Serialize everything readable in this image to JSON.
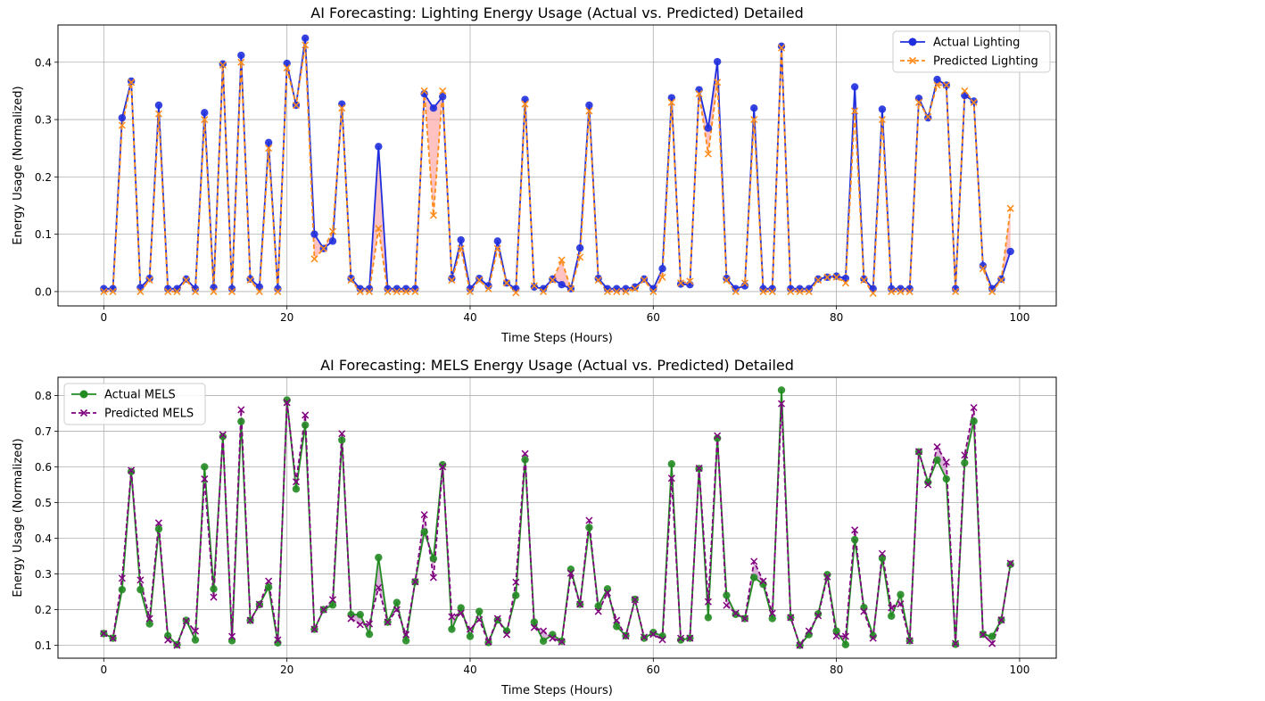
{
  "colors": {
    "actual_lighting": "#1f2fdd",
    "predicted_lighting": "#ff8c1a",
    "lighting_gap": "#ff9999",
    "actual_mels": "#228b22",
    "predicted_mels": "#800080",
    "mels_gap": "#c080c0",
    "grid": "#b0b0b0"
  },
  "chart_data": [
    {
      "type": "line",
      "title": "AI Forecasting: Lighting Energy Usage (Actual vs. Predicted) Detailed",
      "xlabel": "Time Steps (Hours)",
      "ylabel": "Energy Usage (Normalized)",
      "xlim": [
        -5,
        104
      ],
      "ylim": [
        -0.025,
        0.465
      ],
      "xticks": [
        0,
        20,
        40,
        60,
        80,
        100
      ],
      "yticks": [
        0.0,
        0.1,
        0.2,
        0.3,
        0.4
      ],
      "ytick_labels": [
        "0.0",
        "0.1",
        "0.2",
        "0.3",
        "0.4"
      ],
      "grid": true,
      "legend": "top-right",
      "series": [
        {
          "name": "Actual Lighting",
          "values": [
            0.005,
            0.005,
            0.303,
            0.367,
            0.007,
            0.023,
            0.325,
            0.005,
            0.005,
            0.022,
            0.005,
            0.312,
            0.007,
            0.397,
            0.005,
            0.412,
            0.022,
            0.008,
            0.26,
            0.005,
            0.398,
            0.325,
            0.442,
            0.1,
            0.075,
            0.088,
            0.327,
            0.023,
            0.005,
            0.005,
            0.253,
            0.005,
            0.005,
            0.005,
            0.005,
            0.345,
            0.32,
            0.34,
            0.023,
            0.09,
            0.005,
            0.023,
            0.01,
            0.088,
            0.015,
            0.005,
            0.335,
            0.008,
            0.005,
            0.022,
            0.012,
            0.005,
            0.076,
            0.325,
            0.023,
            0.005,
            0.005,
            0.005,
            0.008,
            0.022,
            0.005,
            0.04,
            0.338,
            0.013,
            0.012,
            0.352,
            0.285,
            0.401,
            0.023,
            0.005,
            0.01,
            0.32,
            0.005,
            0.005,
            0.428,
            0.005,
            0.005,
            0.005,
            0.022,
            0.025,
            0.027,
            0.023,
            0.357,
            0.022,
            0.005,
            0.318,
            0.005,
            0.005,
            0.005,
            0.337,
            0.303,
            0.37,
            0.36,
            0.005,
            0.342,
            0.332,
            0.045,
            0.005,
            0.022,
            0.07
          ]
        },
        {
          "name": "Predicted Lighting",
          "values": [
            0.0,
            0.0,
            0.29,
            0.365,
            0.0,
            0.02,
            0.31,
            0.0,
            0.0,
            0.02,
            0.0,
            0.3,
            0.0,
            0.395,
            0.0,
            0.4,
            0.02,
            0.0,
            0.25,
            0.0,
            0.39,
            0.325,
            0.43,
            0.057,
            0.075,
            0.105,
            0.32,
            0.02,
            0.0,
            0.0,
            0.11,
            0.0,
            0.0,
            0.0,
            0.0,
            0.35,
            0.133,
            0.35,
            0.02,
            0.075,
            0.0,
            0.02,
            0.005,
            0.075,
            0.015,
            -0.002,
            0.327,
            0.01,
            0.0,
            0.02,
            0.055,
            0.005,
            0.06,
            0.315,
            0.02,
            0.0,
            0.0,
            0.0,
            0.005,
            0.02,
            0.0,
            0.025,
            0.33,
            0.015,
            0.018,
            0.345,
            0.24,
            0.365,
            0.02,
            0.0,
            0.015,
            0.3,
            0.0,
            0.0,
            0.425,
            0.0,
            0.0,
            0.0,
            0.02,
            0.025,
            0.025,
            0.015,
            0.315,
            0.02,
            -0.003,
            0.3,
            0.0,
            0.0,
            0.0,
            0.33,
            0.305,
            0.36,
            0.36,
            0.0,
            0.35,
            0.33,
            0.04,
            0.0,
            0.02,
            0.145
          ]
        }
      ]
    },
    {
      "type": "line",
      "title": "AI Forecasting: MELS Energy Usage (Actual vs. Predicted) Detailed",
      "xlabel": "Time Steps (Hours)",
      "ylabel": "Energy Usage (Normalized)",
      "xlim": [
        -5,
        104
      ],
      "ylim": [
        0.064,
        0.851
      ],
      "xticks": [
        0,
        20,
        40,
        60,
        80,
        100
      ],
      "yticks": [
        0.1,
        0.2,
        0.3,
        0.4,
        0.5,
        0.6,
        0.7,
        0.8
      ],
      "ytick_labels": [
        "0.1",
        "0.2",
        "0.3",
        "0.4",
        "0.5",
        "0.6",
        "0.7",
        "0.8"
      ],
      "grid": true,
      "legend": "top-left",
      "series": [
        {
          "name": "Actual MELS",
          "values": [
            0.133,
            0.12,
            0.256,
            0.587,
            0.256,
            0.16,
            0.426,
            0.127,
            0.102,
            0.17,
            0.115,
            0.6,
            0.258,
            0.685,
            0.113,
            0.727,
            0.17,
            0.214,
            0.263,
            0.107,
            0.787,
            0.538,
            0.717,
            0.145,
            0.2,
            0.213,
            0.675,
            0.186,
            0.186,
            0.131,
            0.346,
            0.165,
            0.22,
            0.113,
            0.278,
            0.418,
            0.343,
            0.606,
            0.145,
            0.205,
            0.125,
            0.195,
            0.108,
            0.171,
            0.14,
            0.24,
            0.62,
            0.165,
            0.112,
            0.13,
            0.112,
            0.313,
            0.215,
            0.43,
            0.21,
            0.258,
            0.153,
            0.127,
            0.229,
            0.12,
            0.136,
            0.126,
            0.608,
            0.115,
            0.12,
            0.595,
            0.178,
            0.68,
            0.24,
            0.187,
            0.175,
            0.29,
            0.271,
            0.175,
            0.815,
            0.178,
            0.1,
            0.13,
            0.188,
            0.298,
            0.14,
            0.102,
            0.396,
            0.206,
            0.127,
            0.344,
            0.182,
            0.242,
            0.113,
            0.642,
            0.557,
            0.619,
            0.566,
            0.103,
            0.611,
            0.728,
            0.131,
            0.125,
            0.171,
            0.327
          ]
        },
        {
          "name": "Predicted MELS",
          "values": [
            0.133,
            0.12,
            0.288,
            0.59,
            0.283,
            0.175,
            0.443,
            0.115,
            0.1,
            0.168,
            0.14,
            0.566,
            0.235,
            0.69,
            0.125,
            0.76,
            0.17,
            0.215,
            0.28,
            0.115,
            0.78,
            0.558,
            0.745,
            0.145,
            0.2,
            0.228,
            0.693,
            0.175,
            0.158,
            0.16,
            0.262,
            0.165,
            0.2,
            0.13,
            0.278,
            0.466,
            0.29,
            0.6,
            0.18,
            0.19,
            0.145,
            0.172,
            0.11,
            0.175,
            0.13,
            0.277,
            0.637,
            0.15,
            0.14,
            0.12,
            0.11,
            0.302,
            0.215,
            0.45,
            0.195,
            0.247,
            0.17,
            0.126,
            0.228,
            0.123,
            0.131,
            0.116,
            0.568,
            0.12,
            0.12,
            0.596,
            0.222,
            0.687,
            0.212,
            0.19,
            0.175,
            0.335,
            0.28,
            0.19,
            0.777,
            0.178,
            0.1,
            0.14,
            0.183,
            0.292,
            0.126,
            0.125,
            0.423,
            0.195,
            0.12,
            0.357,
            0.205,
            0.216,
            0.113,
            0.643,
            0.55,
            0.656,
            0.613,
            0.105,
            0.633,
            0.766,
            0.13,
            0.105,
            0.171,
            0.33
          ]
        }
      ]
    }
  ]
}
